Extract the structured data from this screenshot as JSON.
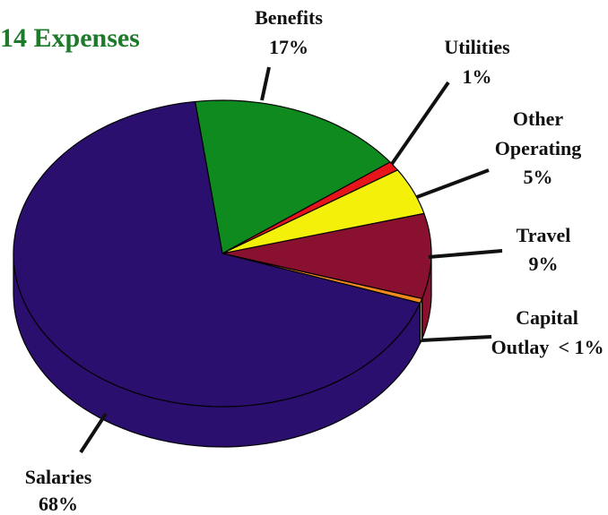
{
  "chart_data": {
    "type": "pie",
    "title": "14 Expenses",
    "categories": [
      "Benefits",
      "Utilities",
      "Other Operating",
      "Travel",
      "Capital Outlay",
      "Salaries"
    ],
    "values": [
      17,
      1,
      5,
      9,
      0.5,
      68
    ],
    "value_labels": [
      "17%",
      "1%",
      "5%",
      "9%",
      "< 1%",
      "68%"
    ],
    "colors": [
      "#0e8a1e",
      "#e8141c",
      "#f5f00a",
      "#8a1030",
      "#f08a1e",
      "#2a0f6e"
    ]
  }
}
